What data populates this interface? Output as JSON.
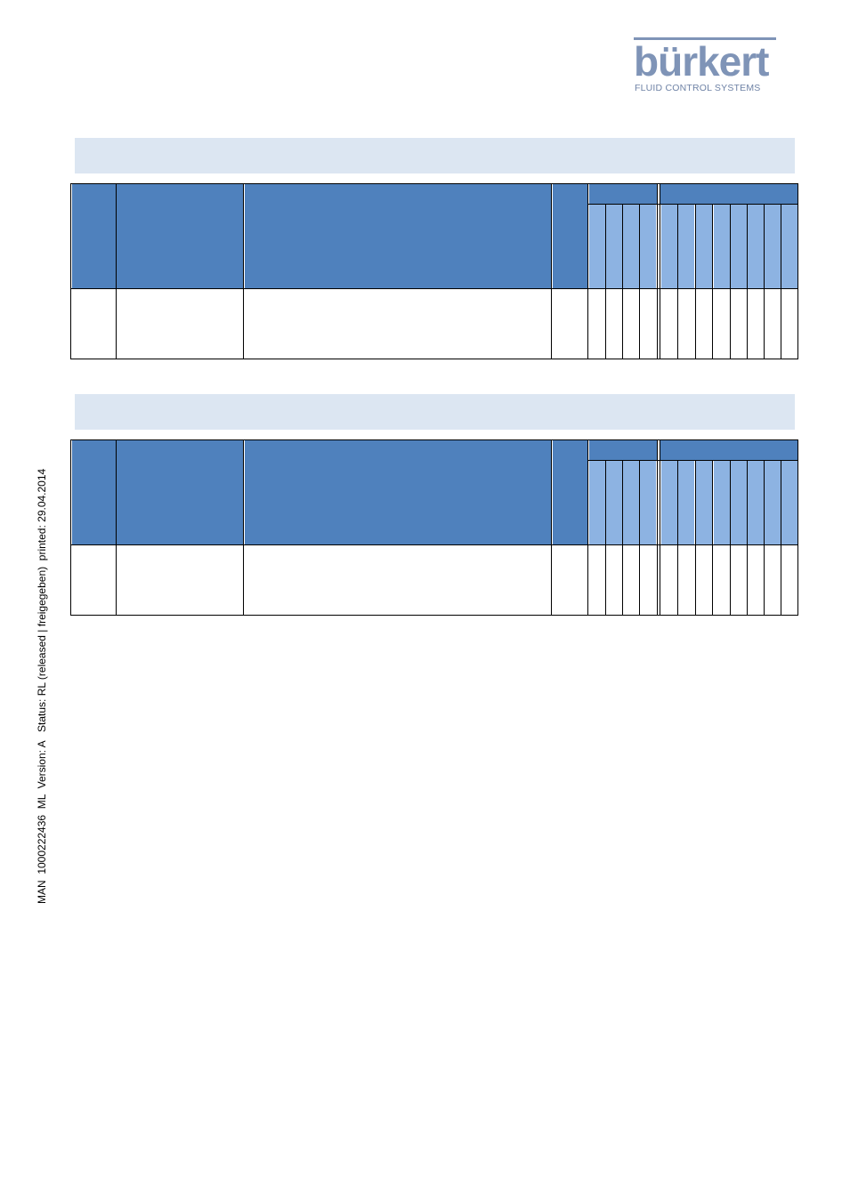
{
  "header": {
    "brand": "bürkert",
    "tagline": "FLUID CONTROL SYSTEMS"
  },
  "colors": {
    "band": "#dce6f2",
    "header_dark": "#4f81bd",
    "header_light": "#8db3e2",
    "logo": "#7f94b7"
  },
  "sections": [
    {
      "title": "",
      "rows": 1
    },
    {
      "title": "",
      "rows": 1
    }
  ],
  "footer": {
    "side_note": "MAN  1000222436  ML  Version: A   Status: RL (released | freigegeben)  printed: 29.04.2014"
  }
}
